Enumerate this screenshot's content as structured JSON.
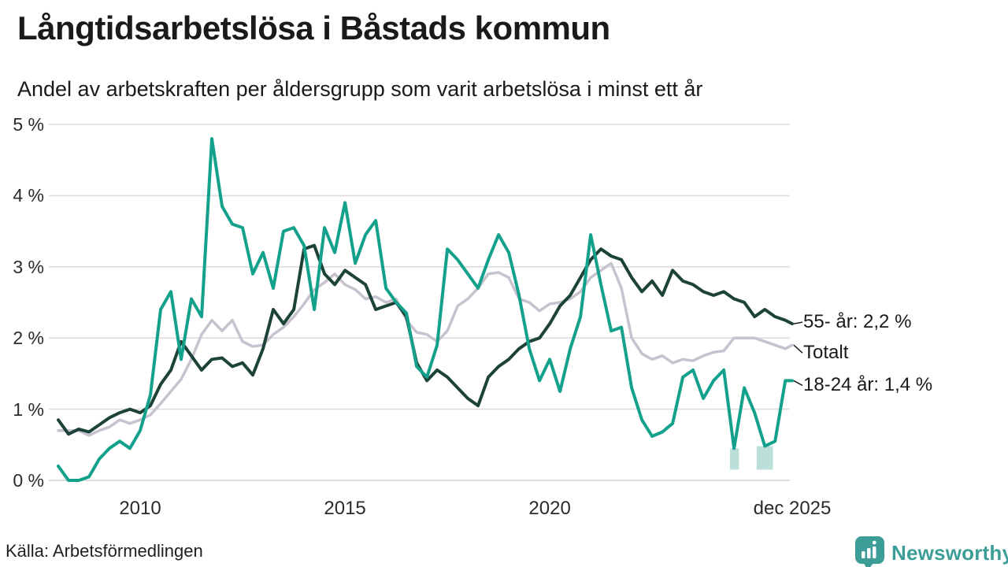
{
  "header": {
    "title": "Långtidsarbetslösa i Båstads kommun",
    "subtitle": "Andel av arbetskraften per åldersgrupp som varit arbetslösa i minst ett år"
  },
  "footer": {
    "source": "Källa: Arbetsförmedlingen",
    "brand": "Newsworthy",
    "brand_color": "#3d9e98"
  },
  "colors": {
    "series_55": "#1d4339",
    "series_totalt": "#c6c3ce",
    "series_1824": "#14a18b",
    "band_fill": "#8fccc0",
    "gridline": "#dddbe0",
    "text": "#1a1a1a",
    "connector": "#1a1a1a"
  },
  "y_axis": {
    "ticks": [
      {
        "label": "0 %",
        "value": 0
      },
      {
        "label": "1 %",
        "value": 1
      },
      {
        "label": "2 %",
        "value": 2
      },
      {
        "label": "3 %",
        "value": 3
      },
      {
        "label": "4 %",
        "value": 4
      },
      {
        "label": "5 %",
        "value": 5
      }
    ]
  },
  "x_axis": {
    "ticks": [
      {
        "label": "2010",
        "year": 2010
      },
      {
        "label": "2015",
        "year": 2015
      },
      {
        "label": "2020",
        "year": 2020
      },
      {
        "label": "dec 2025",
        "year": 2025.92
      }
    ]
  },
  "chart_data": {
    "type": "line",
    "unit": "%",
    "ylim": [
      0,
      5
    ],
    "xlim": [
      2008.0,
      2025.92
    ],
    "grid": "horizontal",
    "legend_position": "right-end-labels",
    "x": [
      2008.0,
      2008.25,
      2008.5,
      2008.75,
      2009.0,
      2009.25,
      2009.5,
      2009.75,
      2010.0,
      2010.25,
      2010.5,
      2010.75,
      2011.0,
      2011.25,
      2011.5,
      2011.75,
      2012.0,
      2012.25,
      2012.5,
      2012.75,
      2013.0,
      2013.25,
      2013.5,
      2013.75,
      2014.0,
      2014.25,
      2014.5,
      2014.75,
      2015.0,
      2015.25,
      2015.5,
      2015.75,
      2016.0,
      2016.25,
      2016.5,
      2016.75,
      2017.0,
      2017.25,
      2017.5,
      2017.75,
      2018.0,
      2018.25,
      2018.5,
      2018.75,
      2019.0,
      2019.25,
      2019.5,
      2019.75,
      2020.0,
      2020.25,
      2020.5,
      2020.75,
      2021.0,
      2021.25,
      2021.5,
      2021.75,
      2022.0,
      2022.25,
      2022.5,
      2022.75,
      2023.0,
      2023.25,
      2023.5,
      2023.75,
      2024.0,
      2024.25,
      2024.5,
      2024.75,
      2025.0,
      2025.25,
      2025.5,
      2025.75,
      2025.92
    ],
    "series": [
      {
        "id": "totalt",
        "name": "Totalt",
        "end_label": "Totalt",
        "end_value": 1.9,
        "color_key": "series_totalt",
        "stroke_width": 3.5,
        "label_offset_y": 10,
        "values": [
          0.7,
          0.7,
          0.7,
          0.63,
          0.7,
          0.75,
          0.85,
          0.8,
          0.85,
          0.92,
          1.08,
          1.25,
          1.42,
          1.7,
          2.05,
          2.25,
          2.1,
          2.25,
          1.95,
          1.88,
          1.9,
          2.05,
          2.15,
          2.3,
          2.48,
          2.68,
          2.78,
          2.9,
          2.75,
          2.68,
          2.55,
          2.58,
          2.5,
          2.55,
          2.25,
          2.08,
          2.05,
          1.95,
          2.1,
          2.45,
          2.55,
          2.7,
          2.9,
          2.92,
          2.85,
          2.55,
          2.5,
          2.38,
          2.48,
          2.5,
          2.55,
          2.65,
          2.85,
          2.95,
          3.05,
          2.7,
          2.0,
          1.78,
          1.7,
          1.75,
          1.65,
          1.7,
          1.68,
          1.75,
          1.8,
          1.82,
          2.0,
          2.0,
          2.0,
          1.95,
          1.9,
          1.85,
          1.9
        ]
      },
      {
        "id": "55",
        "name": "55- år",
        "end_label": "55- år: 2,2 %",
        "end_value": 2.2,
        "color_key": "series_55",
        "stroke_width": 4,
        "label_offset_y": -2,
        "values": [
          0.85,
          0.65,
          0.72,
          0.68,
          0.78,
          0.88,
          0.95,
          1.0,
          0.95,
          1.05,
          1.35,
          1.55,
          1.95,
          1.75,
          1.55,
          1.7,
          1.72,
          1.6,
          1.65,
          1.48,
          1.85,
          2.4,
          2.2,
          2.4,
          3.25,
          3.3,
          2.9,
          2.75,
          2.95,
          2.85,
          2.75,
          2.4,
          2.45,
          2.5,
          2.3,
          1.65,
          1.4,
          1.55,
          1.45,
          1.3,
          1.15,
          1.05,
          1.45,
          1.6,
          1.7,
          1.85,
          1.95,
          2.0,
          2.2,
          2.45,
          2.6,
          2.85,
          3.1,
          3.25,
          3.15,
          3.1,
          2.85,
          2.65,
          2.8,
          2.6,
          2.95,
          2.8,
          2.75,
          2.65,
          2.6,
          2.65,
          2.55,
          2.5,
          2.3,
          2.4,
          2.3,
          2.25,
          2.2
        ]
      },
      {
        "id": "1824",
        "name": "18-24 år",
        "end_label": "18-24 år: 1,4 %",
        "end_value": 1.4,
        "color_key": "series_1824",
        "stroke_width": 4,
        "label_offset_y": 6,
        "values": [
          0.2,
          0.0,
          0.0,
          0.05,
          0.3,
          0.45,
          0.55,
          0.45,
          0.7,
          1.2,
          2.4,
          2.65,
          1.7,
          2.55,
          2.3,
          4.8,
          3.85,
          3.6,
          3.55,
          2.9,
          3.2,
          2.7,
          3.5,
          3.55,
          3.3,
          2.4,
          3.55,
          3.2,
          3.9,
          3.05,
          3.45,
          3.65,
          2.7,
          2.5,
          2.35,
          1.6,
          1.45,
          1.9,
          3.25,
          3.1,
          2.9,
          2.7,
          3.1,
          3.45,
          3.2,
          2.6,
          1.85,
          1.4,
          1.7,
          1.25,
          1.85,
          2.3,
          3.45,
          2.75,
          2.1,
          2.15,
          1.3,
          0.85,
          0.62,
          0.68,
          0.8,
          1.45,
          1.55,
          1.15,
          1.4,
          1.55,
          0.45,
          1.3,
          0.95,
          0.48,
          0.55,
          1.4,
          1.4
        ]
      }
    ],
    "uncertainty_bands": [
      {
        "series_id": "1824",
        "x1": 2024.4,
        "x2": 2024.62,
        "y_top": 0.45,
        "y_bottom": 0.15
      },
      {
        "series_id": "1824",
        "x1": 2025.05,
        "x2": 2025.45,
        "y_top": 0.48,
        "y_bottom": 0.15
      }
    ]
  }
}
